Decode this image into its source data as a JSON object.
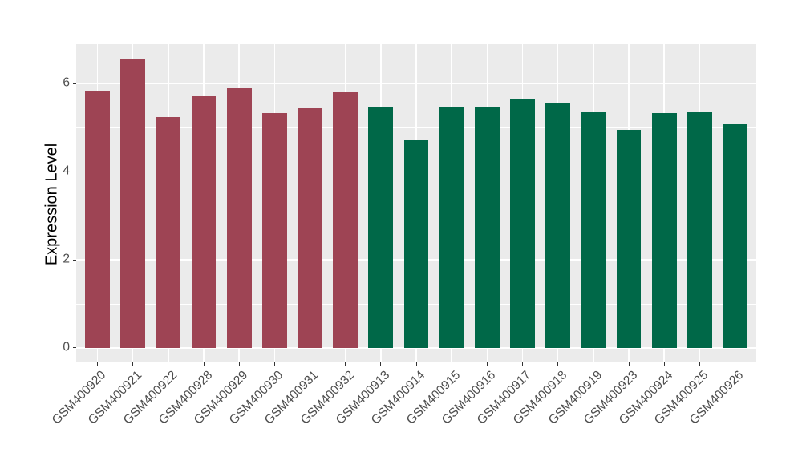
{
  "chart_data": {
    "type": "bar",
    "ylabel": "Expression Level",
    "xlabel": "",
    "categories": [
      "GSM400920",
      "GSM400921",
      "GSM400922",
      "GSM400928",
      "GSM400929",
      "GSM400930",
      "GSM400931",
      "GSM400932",
      "GSM400913",
      "GSM400914",
      "GSM400915",
      "GSM400916",
      "GSM400917",
      "GSM400918",
      "GSM400919",
      "GSM400923",
      "GSM400924",
      "GSM400925",
      "GSM400926"
    ],
    "values": [
      5.85,
      6.55,
      5.25,
      5.72,
      5.9,
      5.34,
      5.44,
      5.8,
      5.47,
      4.72,
      5.47,
      5.46,
      5.66,
      5.55,
      5.35,
      4.95,
      5.34,
      5.36,
      5.08
    ],
    "groups": [
      "A",
      "A",
      "A",
      "A",
      "A",
      "A",
      "A",
      "A",
      "B",
      "B",
      "B",
      "B",
      "B",
      "B",
      "B",
      "B",
      "B",
      "B",
      "B"
    ],
    "group_colors": {
      "A": "#9E4454",
      "B": "#006848"
    },
    "yticks": [
      0,
      2,
      4,
      6
    ],
    "yticks_minor": [
      1,
      3,
      5
    ],
    "ylim": [
      -0.33,
      6.9
    ],
    "grid": "on",
    "legend_position": "none",
    "colors": {
      "panel_background": "#EBEBEB",
      "gridline": "#FFFFFF",
      "tick_mark": "#333333",
      "axis_text": "#4D4D4D",
      "axis_title": "#000000",
      "figure_background": "#FFFFFF"
    }
  }
}
